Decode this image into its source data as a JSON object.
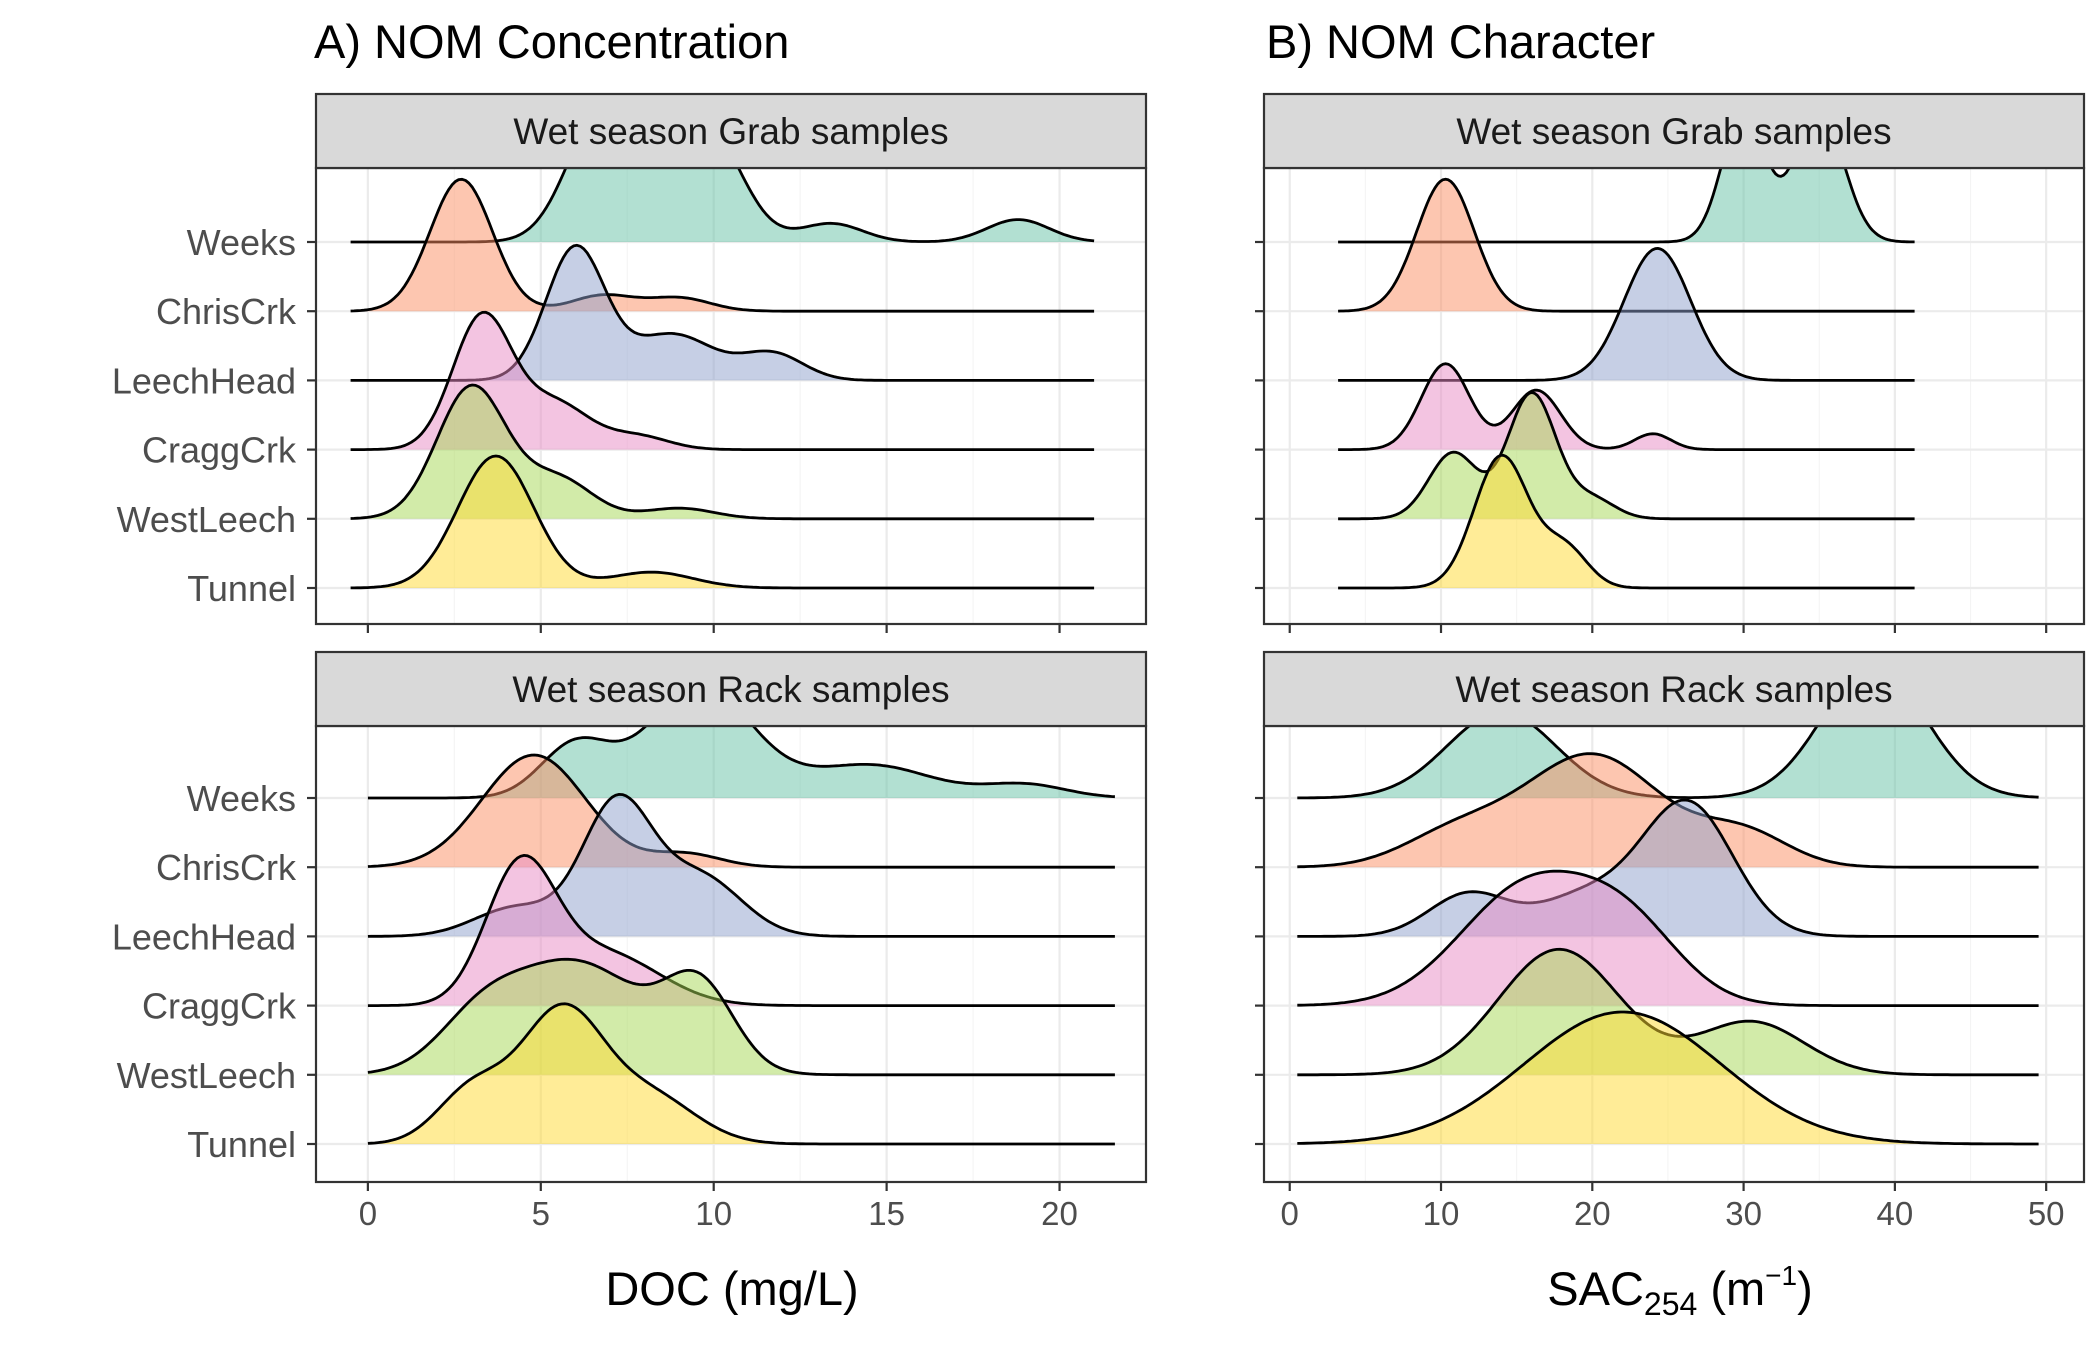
{
  "figure": {
    "panel_a_title": "A) NOM Concentration",
    "panel_b_title": "B) NOM Character",
    "panel_a_xlabel": "DOC (mg/L)",
    "panel_b_xlabel_main": "SAC",
    "panel_b_xlabel_sub": "254",
    "panel_b_xlabel_unit_open": " (m",
    "panel_b_xlabel_sup": "−1",
    "panel_b_xlabel_unit_close": ")"
  },
  "chart_data": [
    {
      "type": "area",
      "panel": "A",
      "facet": "Wet season Grab samples",
      "xlabel": "DOC (mg/L)",
      "xlim": [
        -1.5,
        22.5
      ],
      "x_ticks": [
        0,
        5,
        10,
        15,
        20
      ],
      "categories": [
        "Weeks",
        "ChrisCrk",
        "LeechHead",
        "CraggCrk",
        "WestLeech",
        "Tunnel"
      ],
      "series": [
        {
          "name": "Weeks",
          "color": "#66c2a5",
          "range": [
            -0.5,
            21
          ],
          "peaks": [
            [
              6.8,
              1.0,
              1.0
            ],
            [
              9.8,
              0.85,
              1.0
            ],
            [
              13.4,
              0.14,
              0.9
            ],
            [
              18.8,
              0.17,
              0.9
            ]
          ]
        },
        {
          "name": "ChrisCrk",
          "color": "#fc8d62",
          "range": [
            -0.5,
            21
          ],
          "peaks": [
            [
              2.7,
              1.0,
              0.9
            ],
            [
              6.8,
              0.12,
              0.9
            ],
            [
              9.0,
              0.1,
              0.9
            ]
          ]
        },
        {
          "name": "LeechHead",
          "color": "#8da0cb",
          "range": [
            -0.5,
            21
          ],
          "peaks": [
            [
              6.0,
              1.0,
              0.85
            ],
            [
              8.8,
              0.35,
              1.2
            ],
            [
              11.7,
              0.2,
              0.9
            ]
          ]
        },
        {
          "name": "CraggCrk",
          "color": "#e78ac3",
          "range": [
            -0.5,
            21
          ],
          "peaks": [
            [
              3.3,
              1.0,
              0.85
            ],
            [
              5.4,
              0.35,
              1.0
            ],
            [
              7.8,
              0.1,
              0.9
            ]
          ]
        },
        {
          "name": "WestLeech",
          "color": "#a6d854",
          "range": [
            -0.5,
            21
          ],
          "peaks": [
            [
              3.0,
              1.0,
              1.0
            ],
            [
              5.5,
              0.3,
              1.0
            ],
            [
              9.0,
              0.08,
              1.0
            ]
          ]
        },
        {
          "name": "Tunnel",
          "color": "#ffd92f",
          "range": [
            -0.5,
            21
          ],
          "peaks": [
            [
              3.7,
              1.0,
              1.1
            ],
            [
              8.2,
              0.12,
              1.2
            ]
          ]
        }
      ]
    },
    {
      "type": "area",
      "panel": "B",
      "facet": "Wet season Grab samples",
      "xlabel": "SAC254 (m−1)",
      "xlim": [
        -1.7,
        52.5
      ],
      "x_ticks": [
        0,
        10,
        20,
        30,
        40,
        50
      ],
      "categories": [
        "Weeks",
        "ChrisCrk",
        "LeechHead",
        "CraggCrk",
        "WestLeech",
        "Tunnel"
      ],
      "series": [
        {
          "name": "Weeks",
          "color": "#66c2a5",
          "range": [
            3.2,
            41.3
          ],
          "peaks": [
            [
              30.0,
              1.0,
              1.4
            ],
            [
              35.0,
              1.0,
              1.6
            ]
          ]
        },
        {
          "name": "ChrisCrk",
          "color": "#fc8d62",
          "range": [
            3.2,
            41.3
          ],
          "peaks": [
            [
              10.3,
              1.0,
              1.9
            ]
          ]
        },
        {
          "name": "LeechHead",
          "color": "#8da0cb",
          "range": [
            3.2,
            41.3
          ],
          "peaks": [
            [
              24.3,
              1.0,
              2.2
            ]
          ]
        },
        {
          "name": "CraggCrk",
          "color": "#e78ac3",
          "range": [
            3.2,
            41.3
          ],
          "peaks": [
            [
              10.3,
              0.65,
              1.6
            ],
            [
              16.3,
              0.45,
              1.6
            ],
            [
              24.0,
              0.12,
              1.2
            ]
          ]
        },
        {
          "name": "WestLeech",
          "color": "#a6d854",
          "range": [
            3.2,
            41.3
          ],
          "peaks": [
            [
              10.8,
              0.5,
              1.6
            ],
            [
              16.0,
              0.95,
              1.6
            ],
            [
              20.0,
              0.15,
              1.5
            ]
          ]
        },
        {
          "name": "Tunnel",
          "color": "#ffd92f",
          "range": [
            3.2,
            41.3
          ],
          "peaks": [
            [
              14.0,
              1.0,
              1.8
            ],
            [
              18.2,
              0.3,
              1.5
            ]
          ]
        }
      ]
    },
    {
      "type": "area",
      "panel": "A",
      "facet": "Wet season Rack samples",
      "xlabel": "DOC (mg/L)",
      "xlim": [
        -1.5,
        22.5
      ],
      "x_ticks": [
        0,
        5,
        10,
        15,
        20
      ],
      "categories": [
        "Weeks",
        "ChrisCrk",
        "LeechHead",
        "CraggCrk",
        "WestLeech",
        "Tunnel"
      ],
      "series": [
        {
          "name": "Weeks",
          "color": "#66c2a5",
          "range": [
            0,
            21.6
          ],
          "peaks": [
            [
              6.0,
              0.4,
              1.0
            ],
            [
              9.6,
              0.85,
              1.5
            ],
            [
              14.5,
              0.25,
              1.8
            ],
            [
              19.0,
              0.1,
              1.2
            ]
          ]
        },
        {
          "name": "ChrisCrk",
          "color": "#fc8d62",
          "range": [
            0,
            21.6
          ],
          "peaks": [
            [
              4.8,
              0.85,
              1.5
            ],
            [
              9.2,
              0.1,
              1.0
            ]
          ]
        },
        {
          "name": "LeechHead",
          "color": "#8da0cb",
          "range": [
            0,
            21.6
          ],
          "peaks": [
            [
              4.3,
              0.22,
              1.2
            ],
            [
              7.2,
              1.0,
              1.0
            ],
            [
              9.6,
              0.45,
              1.2
            ]
          ]
        },
        {
          "name": "CraggCrk",
          "color": "#e78ac3",
          "range": [
            0,
            21.6
          ],
          "peaks": [
            [
              4.4,
              1.0,
              1.0
            ],
            [
              6.8,
              0.4,
              1.6
            ]
          ]
        },
        {
          "name": "WestLeech",
          "color": "#a6d854",
          "range": [
            0,
            21.6
          ],
          "peaks": [
            [
              6.0,
              0.85,
              2.0
            ],
            [
              9.6,
              0.6,
              1.0
            ],
            [
              3.2,
              0.3,
              1.2
            ]
          ]
        },
        {
          "name": "Tunnel",
          "color": "#ffd92f",
          "range": [
            0,
            21.6
          ],
          "peaks": [
            [
              3.0,
              0.4,
              1.0
            ],
            [
              5.6,
              1.0,
              1.2
            ],
            [
              8.2,
              0.35,
              1.3
            ]
          ]
        }
      ]
    },
    {
      "type": "area",
      "panel": "B",
      "facet": "Wet season Rack samples",
      "xlabel": "SAC254 (m−1)",
      "xlim": [
        -1.7,
        52.5
      ],
      "x_ticks": [
        0,
        10,
        20,
        30,
        40,
        50
      ],
      "categories": [
        "Weeks",
        "ChrisCrk",
        "LeechHead",
        "CraggCrk",
        "WestLeech",
        "Tunnel"
      ],
      "series": [
        {
          "name": "Weeks",
          "color": "#66c2a5",
          "range": [
            0.5,
            49.5
          ],
          "peaks": [
            [
              14.0,
              0.65,
              3.6
            ],
            [
              38.6,
              1.0,
              3.4
            ]
          ]
        },
        {
          "name": "ChrisCrk",
          "color": "#fc8d62",
          "range": [
            0.5,
            49.5
          ],
          "peaks": [
            [
              11.0,
              0.25,
              3.5
            ],
            [
              20.0,
              0.85,
              4.5
            ],
            [
              30.0,
              0.25,
              3.0
            ]
          ]
        },
        {
          "name": "LeechHead",
          "color": "#8da0cb",
          "range": [
            0.5,
            49.5
          ],
          "peaks": [
            [
              11.8,
              0.32,
              2.6
            ],
            [
              19.5,
              0.3,
              3.2
            ],
            [
              26.3,
              1.0,
              3.0
            ]
          ]
        },
        {
          "name": "CraggCrk",
          "color": "#e78ac3",
          "range": [
            0.5,
            49.5
          ],
          "peaks": [
            [
              15.8,
              0.9,
              4.5
            ],
            [
              22.5,
              0.5,
              3.5
            ]
          ]
        },
        {
          "name": "WestLeech",
          "color": "#a6d854",
          "range": [
            0.5,
            49.5
          ],
          "peaks": [
            [
              17.8,
              0.95,
              4.0
            ],
            [
              30.5,
              0.4,
              3.5
            ]
          ]
        },
        {
          "name": "Tunnel",
          "color": "#ffd92f",
          "range": [
            0.5,
            49.5
          ],
          "peaks": [
            [
              22.0,
              1.0,
              6.5
            ]
          ]
        }
      ]
    }
  ]
}
